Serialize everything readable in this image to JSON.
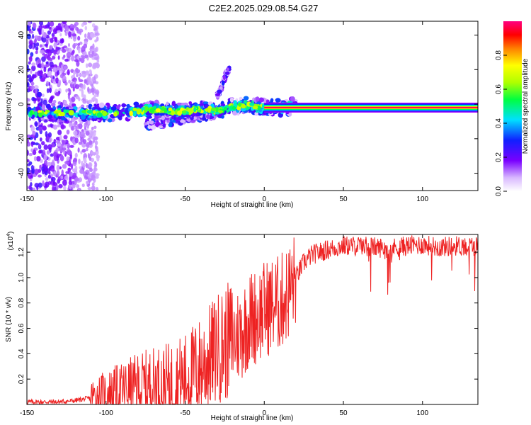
{
  "title": "C2E2.2025.029.08.54.G27",
  "spectrogram": {
    "type": "heatmap",
    "xlabel": "Height of straight line (km)",
    "ylabel": "Frequency (Hz)",
    "xlim": [
      -150,
      135
    ],
    "ylim": [
      -50,
      48
    ],
    "xticks": [
      -150,
      -100,
      -50,
      0,
      50,
      100
    ],
    "xtick_labels": [
      "-150",
      "-100",
      "-50",
      "0",
      "50",
      "100"
    ],
    "yticks": [
      -40,
      -20,
      0,
      20,
      40
    ],
    "ytick_labels": [
      "-40",
      "-20",
      "0",
      "20",
      "40"
    ],
    "colorbar": {
      "label": "Normalized spectral amplitude",
      "range": [
        0,
        1
      ],
      "ticks": [
        0,
        0.2,
        0.4,
        0.6,
        0.8
      ],
      "tick_labels": [
        "0.0",
        "0.2",
        "0.4",
        "0.6",
        "0.8"
      ]
    },
    "features": [
      {
        "name": "carrier",
        "x_range": [
          0,
          135
        ],
        "frequency": -2,
        "amplitude": 1.0
      },
      {
        "name": "noisy-region",
        "x_range": [
          -150,
          -110
        ],
        "frequency_range": [
          -50,
          48
        ],
        "amplitude": 0.3
      },
      {
        "name": "main-trace",
        "points": [
          [
            -150,
            -5
          ],
          [
            -130,
            -5
          ],
          [
            -110,
            -5
          ],
          [
            -100,
            -5
          ],
          [
            -80,
            -4
          ],
          [
            -70,
            -3
          ],
          [
            -60,
            -4
          ],
          [
            -50,
            -4
          ],
          [
            -40,
            -3
          ],
          [
            -30,
            -4
          ],
          [
            -20,
            -1
          ],
          [
            -10,
            -1
          ],
          [
            0,
            -2
          ],
          [
            10,
            -2
          ],
          [
            20,
            -1
          ]
        ],
        "amplitude": 0.6
      },
      {
        "name": "upper-branch",
        "points": [
          [
            -30,
            4
          ],
          [
            -27,
            10
          ],
          [
            -24,
            18
          ],
          [
            -22,
            20
          ]
        ],
        "amplitude": 0.15
      },
      {
        "name": "lower-branch",
        "points": [
          [
            -75,
            -12
          ],
          [
            -60,
            -10
          ],
          [
            -50,
            -8
          ],
          [
            -40,
            -7
          ],
          [
            -30,
            -5
          ]
        ],
        "amplitude": 0.2
      }
    ]
  },
  "chart_data": {
    "type": "line",
    "xlabel": "Height of straight line (km)",
    "ylabel": "SNR (10 * v/v)",
    "y_multiplier_label": "(x10",
    "y_multiplier_exp": "4",
    "y_multiplier_close": ")",
    "xlim": [
      -150,
      135
    ],
    "ylim": [
      0,
      1.34
    ],
    "xticks": [
      -150,
      -100,
      -50,
      0,
      50,
      100
    ],
    "xtick_labels": [
      "-150",
      "-100",
      "-50",
      "0",
      "50",
      "100"
    ],
    "yticks": [
      0.2,
      0.4,
      0.6,
      0.8,
      1.0,
      1.2
    ],
    "ytick_labels": [
      "0.2",
      "0.4",
      "0.6",
      "0.8",
      "1.0",
      "1.2"
    ],
    "line_color": "#ee2222",
    "series": [
      {
        "x": [
          -150,
          -140,
          -130,
          -120,
          -110,
          -100,
          -90,
          -80,
          -70,
          -60,
          -50,
          -45,
          -40,
          -35,
          -30,
          -25,
          -20,
          -15,
          -10,
          -5,
          0,
          5,
          10,
          15,
          20,
          25,
          30,
          40,
          50,
          60,
          70,
          80,
          90,
          100,
          110,
          120,
          135
        ],
        "y": [
          0.02,
          0.02,
          0.02,
          0.03,
          0.05,
          0.08,
          0.11,
          0.14,
          0.16,
          0.15,
          0.2,
          0.25,
          0.3,
          0.36,
          0.44,
          0.48,
          0.52,
          0.56,
          0.66,
          0.7,
          0.75,
          0.78,
          0.8,
          0.88,
          1.0,
          1.12,
          1.18,
          1.22,
          1.25,
          1.25,
          1.24,
          1.23,
          1.25,
          1.26,
          1.24,
          1.25,
          1.25
        ]
      }
    ]
  }
}
